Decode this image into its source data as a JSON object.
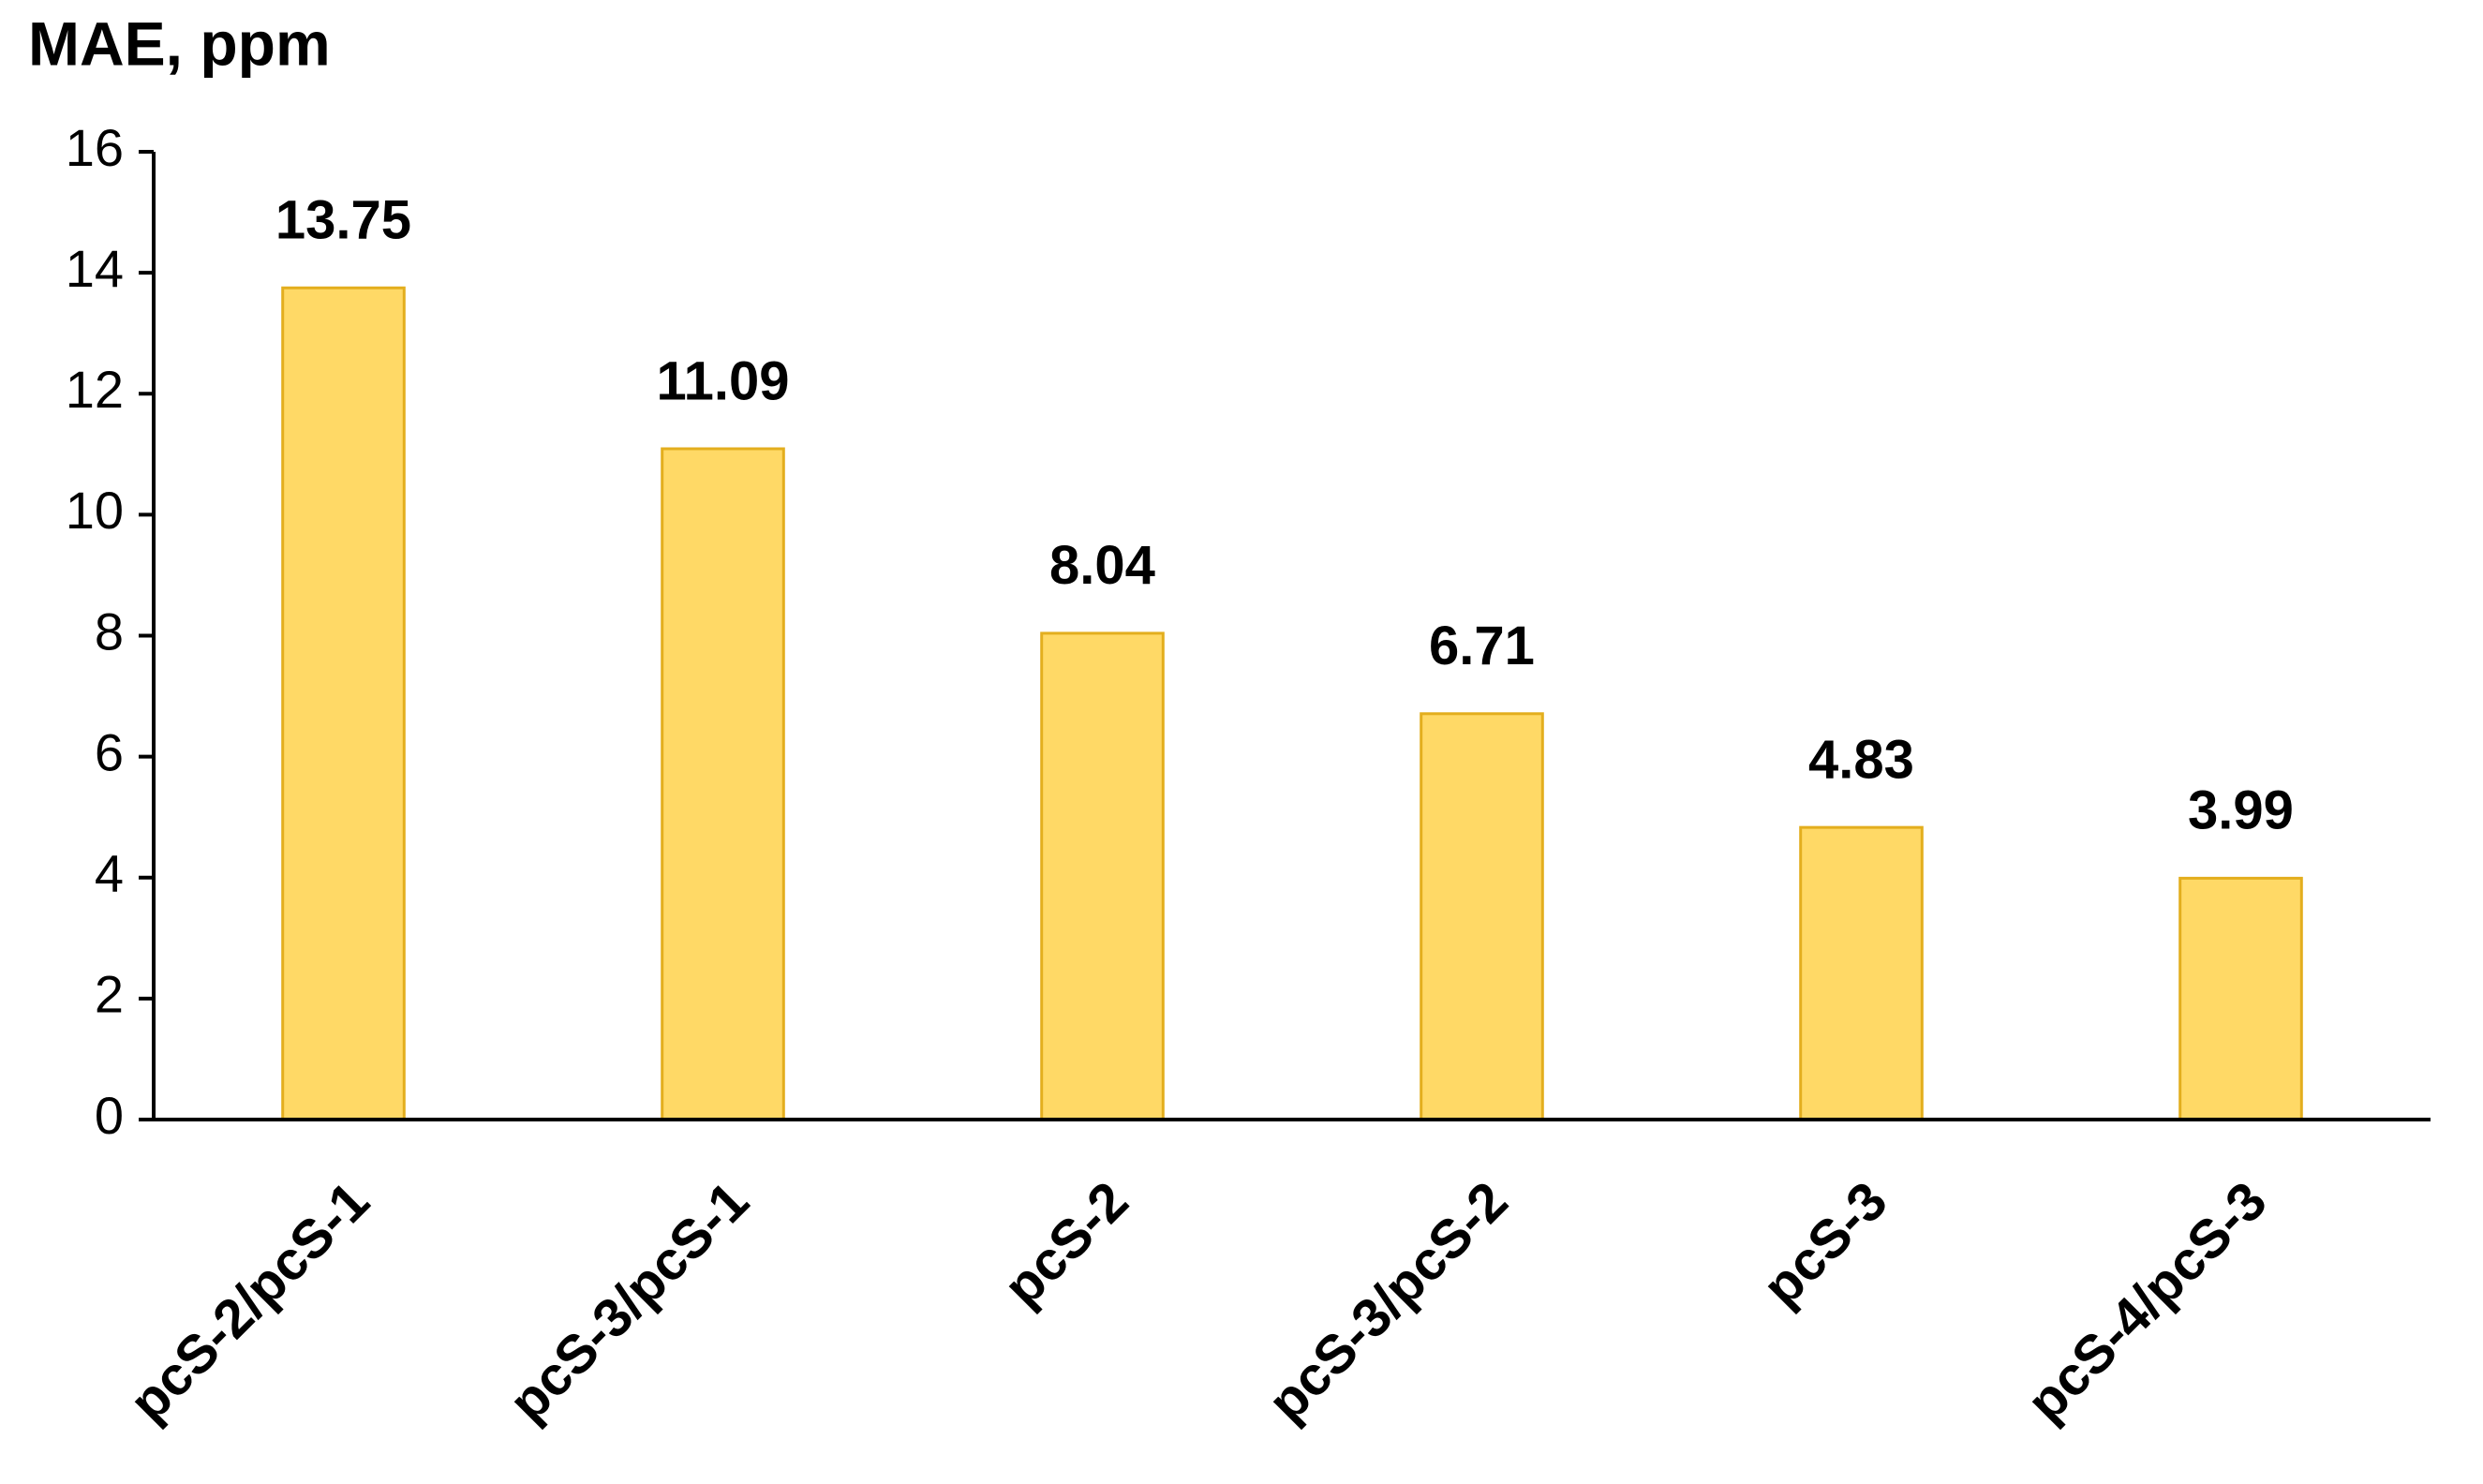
{
  "chart_data": {
    "type": "bar",
    "title": "MAE, ppm",
    "categories": [
      "pcS-2/pcS-1",
      "pcS-3/pcS-1",
      "pcS-2",
      "pcS-3/pcS-2",
      "pcS-3",
      "pcS-4/pcS-3"
    ],
    "values": [
      13.75,
      11.09,
      8.04,
      6.71,
      4.83,
      3.99
    ],
    "color": "#FFD966",
    "ylim": [
      0,
      16
    ],
    "yticks": [
      0,
      2,
      4,
      6,
      8,
      10,
      12,
      14,
      16
    ],
    "grid": false
  }
}
